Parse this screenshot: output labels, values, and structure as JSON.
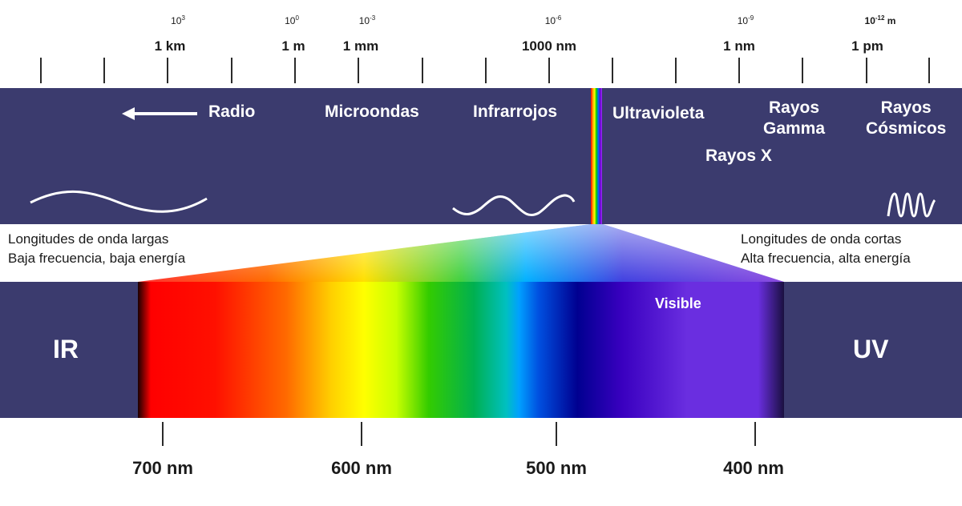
{
  "scale": {
    "exponents": [
      {
        "base": "10",
        "power": "3",
        "suffix": ""
      },
      {
        "base": "10",
        "power": "0",
        "suffix": ""
      },
      {
        "base": "10",
        "power": "-3",
        "suffix": ""
      },
      {
        "base": "10",
        "power": "-6",
        "suffix": ""
      },
      {
        "base": "10",
        "power": "-9",
        "suffix": ""
      },
      {
        "base": "10",
        "power": "-12",
        "suffix": " m"
      }
    ],
    "units": [
      "1 km",
      "1 m",
      "1 mm",
      "1000 nm",
      "1 nm",
      "1 pm"
    ]
  },
  "bands": {
    "radio": "Radio",
    "microondas": "Microondas",
    "infrarrojos": "Infrarrojos",
    "ultravioleta": "Ultravioleta",
    "rayos_gamma": "Rayos\nGamma",
    "rayos_x": "Rayos X",
    "rayos_cosmicos": "Rayos\nCósmicos"
  },
  "descriptions": {
    "left_line1": "Longitudes de onda largas",
    "left_line2": "Baja frecuencia, baja energía",
    "right_line1": "Longitudes de onda cortas",
    "right_line2": "Alta frecuencia, alta energía"
  },
  "visible": {
    "ir_label": "IR",
    "uv_label": "UV",
    "visible_label": "Visible",
    "wavelengths": [
      "700 nm",
      "600 nm",
      "500 nm",
      "400 nm"
    ]
  },
  "colors": {
    "band": "#3b3b6e",
    "text_on_band": "#ffffff"
  }
}
